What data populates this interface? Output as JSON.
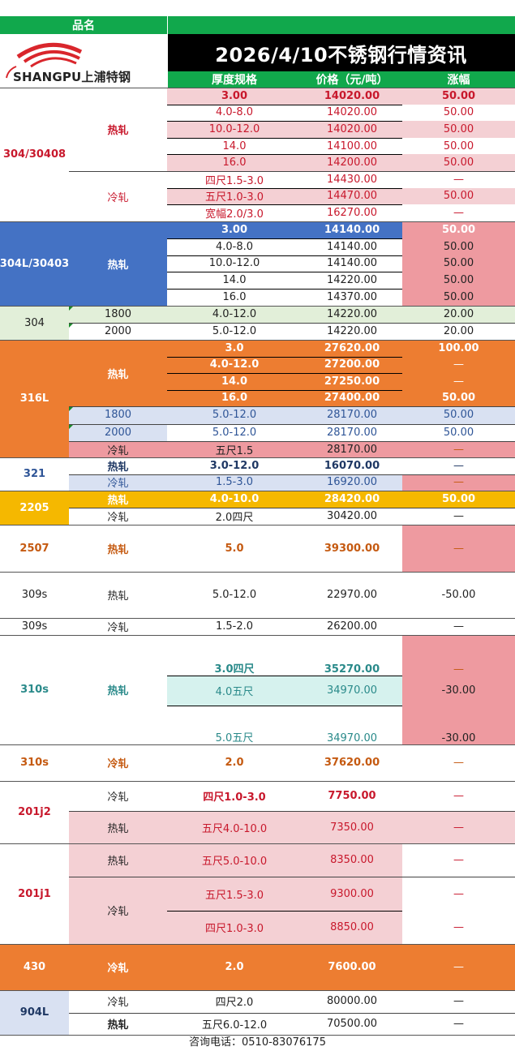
{
  "header": {
    "product_label": "品名",
    "title": "2026/4/10不锈钢行情资讯",
    "col_spec": "厚度规格",
    "col_price": "价格（元/吨）",
    "col_change": "涨幅"
  },
  "logo": {
    "text": "SHANGPU上浦特钢",
    "icon": "swoosh-logo-icon"
  },
  "colors": {
    "green": "#11a84c",
    "blue": "#4472c4",
    "orange": "#ed7d31",
    "yellow": "#f5b800",
    "pink": "#f4d0d4",
    "rose": "#ee9aa0"
  },
  "groups": [
    {
      "name": "304/30408",
      "subs": [
        {
          "name": "热轧",
          "rows": [
            {
              "spec": "3.00",
              "price": "14020.00",
              "change": "50.00"
            },
            {
              "spec": "4.0-8.0",
              "price": "14020.00",
              "change": "50.00"
            },
            {
              "spec": "10.0-12.0",
              "price": "14020.00",
              "change": "50.00"
            },
            {
              "spec": "14.0",
              "price": "14100.00",
              "change": "50.00"
            },
            {
              "spec": "16.0",
              "price": "14200.00",
              "change": "50.00"
            }
          ]
        },
        {
          "name": "冷轧",
          "rows": [
            {
              "spec": "四尺1.5-3.0",
              "price": "14430.00",
              "change": "—"
            },
            {
              "spec": "五尺1.0-3.0",
              "price": "14470.00",
              "change": "50.00"
            },
            {
              "spec": "宽幅2.0/3.0",
              "price": "16270.00",
              "change": "—"
            }
          ]
        }
      ]
    },
    {
      "name": "304L/30403",
      "subs": [
        {
          "name": "热轧",
          "rows": [
            {
              "spec": "3.00",
              "price": "14140.00",
              "change": "50.00"
            },
            {
              "spec": "4.0-8.0",
              "price": "14140.00",
              "change": "50.00"
            },
            {
              "spec": "10.0-12.0",
              "price": "14140.00",
              "change": "50.00"
            },
            {
              "spec": "14.0",
              "price": "14220.00",
              "change": "50.00"
            },
            {
              "spec": "16.0",
              "price": "14370.00",
              "change": "50.00"
            }
          ]
        }
      ]
    },
    {
      "name": "304",
      "subs": [
        {
          "name": "1800",
          "rows": [
            {
              "spec": "4.0-12.0",
              "price": "14220.00",
              "change": "20.00"
            }
          ]
        },
        {
          "name": "2000",
          "rows": [
            {
              "spec": "5.0-12.0",
              "price": "14220.00",
              "change": "20.00"
            }
          ]
        }
      ]
    },
    {
      "name": "316L",
      "subs": [
        {
          "name": "热轧",
          "rows": [
            {
              "spec": "3.0",
              "price": "27620.00",
              "change": "100.00"
            },
            {
              "spec": "4.0-12.0",
              "price": "27200.00",
              "change": "—"
            },
            {
              "spec": "14.0",
              "price": "27250.00",
              "change": "—"
            },
            {
              "spec": "16.0",
              "price": "27400.00",
              "change": "50.00"
            }
          ]
        },
        {
          "name": "1800",
          "rows": [
            {
              "spec": "5.0-12.0",
              "price": "28170.00",
              "change": "50.00"
            }
          ]
        },
        {
          "name": "2000",
          "rows": [
            {
              "spec": "5.0-12.0",
              "price": "28170.00",
              "change": "50.00"
            }
          ]
        },
        {
          "name": "冷轧",
          "rows": [
            {
              "spec": "五尺1.5",
              "price": "28170.00",
              "change": "—"
            }
          ]
        }
      ]
    },
    {
      "name": "321",
      "subs": [
        {
          "name": "热轧",
          "rows": [
            {
              "spec": "3.0-12.0",
              "price": "16070.00",
              "change": "—"
            }
          ]
        },
        {
          "name": "冷轧",
          "rows": [
            {
              "spec": "1.5-3.0",
              "price": "16920.00",
              "change": "—"
            }
          ]
        }
      ]
    },
    {
      "name": "2205",
      "subs": [
        {
          "name": "热轧",
          "rows": [
            {
              "spec": "4.0-10.0",
              "price": "28420.00",
              "change": "50.00"
            }
          ]
        },
        {
          "name": "冷轧",
          "rows": [
            {
              "spec": "2.0四尺",
              "price": "30420.00",
              "change": "—"
            }
          ]
        }
      ]
    },
    {
      "name": "2507",
      "subs": [
        {
          "name": "热轧",
          "rows": [
            {
              "spec": "5.0",
              "price": "39300.00",
              "change": "—"
            }
          ]
        }
      ]
    },
    {
      "name": "309s",
      "subs": [
        {
          "name": "热轧",
          "rows": [
            {
              "spec": "5.0-12.0",
              "price": "22970.00",
              "change": "-50.00"
            }
          ]
        }
      ]
    },
    {
      "name": "309s",
      "subs": [
        {
          "name": "冷轧",
          "rows": [
            {
              "spec": "1.5-2.0",
              "price": "26200.00",
              "change": "—"
            }
          ]
        }
      ]
    },
    {
      "name": "310s",
      "subs": [
        {
          "name": "热轧",
          "rows": [
            {
              "spec": "3.0四尺",
              "price": "35270.00",
              "change": "—"
            },
            {
              "spec": "4.0五尺",
              "price": "34970.00",
              "change": "-30.00"
            },
            {
              "spec": "5.0五尺",
              "price": "34970.00",
              "change": "-30.00"
            }
          ]
        }
      ]
    },
    {
      "name": "310s",
      "subs": [
        {
          "name": "冷轧",
          "rows": [
            {
              "spec": "2.0",
              "price": "37620.00",
              "change": "—"
            }
          ]
        }
      ]
    },
    {
      "name": "201j2",
      "subs": [
        {
          "name": "冷轧",
          "rows": [
            {
              "spec": "四尺1.0-3.0",
              "price": "7750.00",
              "change": "—"
            }
          ]
        },
        {
          "name": "热轧",
          "rows": [
            {
              "spec": "五尺4.0-10.0",
              "price": "7350.00",
              "change": "—"
            }
          ]
        }
      ]
    },
    {
      "name": "201j1",
      "subs": [
        {
          "name": "热轧",
          "rows": [
            {
              "spec": "五尺5.0-10.0",
              "price": "8350.00",
              "change": "—"
            }
          ]
        },
        {
          "name": "冷轧",
          "rows": [
            {
              "spec": "五尺1.5-3.0",
              "price": "9300.00",
              "change": "—"
            },
            {
              "spec": "四尺1.0-3.0",
              "price": "8850.00",
              "change": "—"
            }
          ]
        }
      ]
    },
    {
      "name": "430",
      "subs": [
        {
          "name": "冷轧",
          "rows": [
            {
              "spec": "2.0",
              "price": "7600.00",
              "change": "—"
            }
          ]
        }
      ]
    },
    {
      "name": "904L",
      "subs": [
        {
          "name": "冷轧",
          "rows": [
            {
              "spec": "四尺2.0",
              "price": "80000.00",
              "change": "—"
            }
          ]
        },
        {
          "name": "热轧",
          "rows": [
            {
              "spec": "五尺6.0-12.0",
              "price": "70500.00",
              "change": "—"
            }
          ]
        }
      ]
    }
  ],
  "footer": {
    "text": "咨询电话：0510-83076175"
  }
}
